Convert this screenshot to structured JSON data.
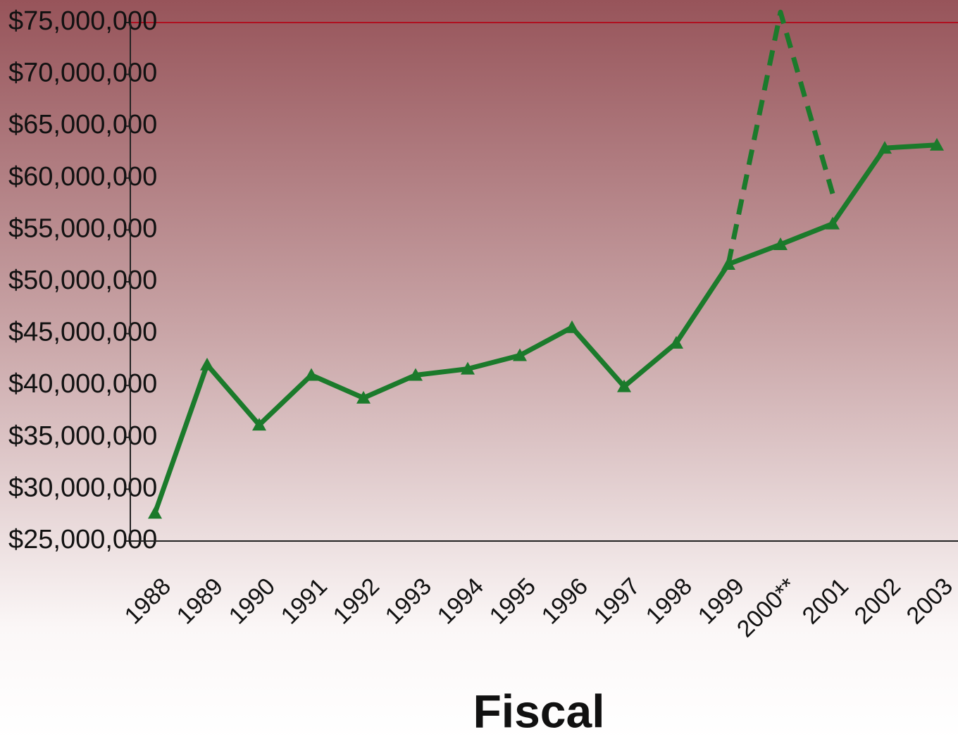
{
  "chart_data": {
    "type": "line",
    "x_label": "Fiscal",
    "categories": [
      "1988",
      "1989",
      "1990",
      "1991",
      "1992",
      "1993",
      "1994",
      "1995",
      "1996",
      "1997",
      "1998",
      "1999",
      "2000**",
      "2001",
      "2002",
      "2003"
    ],
    "series": [
      {
        "color": "#1b7a2b",
        "line_style": "solid",
        "marker": "triangle",
        "values": [
          27700000,
          42000000,
          36200000,
          41000000,
          38800000,
          41000000,
          41600000,
          42900000,
          45600000,
          39900000,
          44100000,
          51700000,
          53600000,
          55600000,
          62900000,
          63200000
        ]
      },
      {
        "color": "#1b7a2b",
        "line_style": "dashed",
        "marker": "none",
        "values": [
          null,
          null,
          null,
          null,
          null,
          null,
          null,
          null,
          null,
          null,
          null,
          51700000,
          76000000,
          58500000,
          null,
          null
        ]
      }
    ],
    "ylim": [
      25000000,
      75000000
    ],
    "yticks": [
      {
        "value": 25000000,
        "label": "$25,000,000"
      },
      {
        "value": 30000000,
        "label": "$30,000,000"
      },
      {
        "value": 35000000,
        "label": "$35,000,000"
      },
      {
        "value": 40000000,
        "label": "$40,000,000"
      },
      {
        "value": 45000000,
        "label": "$45,000,000"
      },
      {
        "value": 50000000,
        "label": "$50,000,000"
      },
      {
        "value": 55000000,
        "label": "$55,000,000"
      },
      {
        "value": 60000000,
        "label": "$60,000,000"
      },
      {
        "value": 65000000,
        "label": "$65,000,000"
      },
      {
        "value": 70000000,
        "label": "$70,000,000"
      },
      {
        "value": 75000000,
        "label": "$75,000,000"
      }
    ],
    "grid": false
  }
}
